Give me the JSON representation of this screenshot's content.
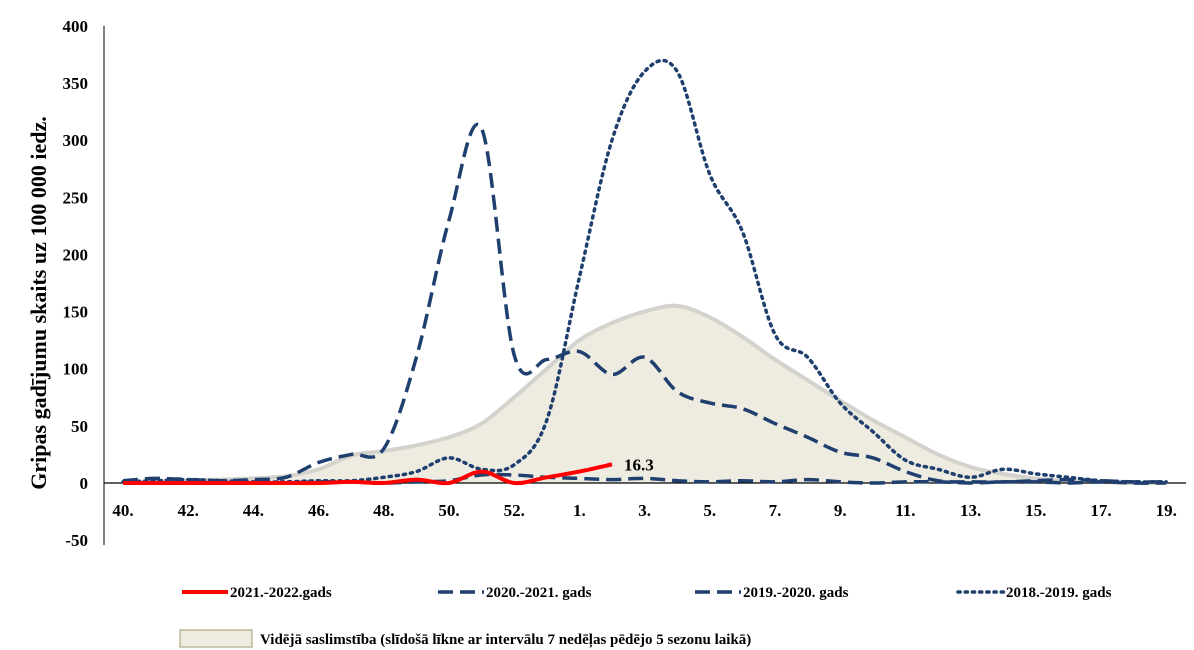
{
  "chart_data": {
    "type": "line",
    "ylabel": "Gripas gadījumu skaits uz 100 000 iedz.",
    "xlabel": "",
    "ylim": [
      -50,
      400
    ],
    "yticks": [
      400,
      350,
      300,
      250,
      200,
      150,
      100,
      50,
      0,
      -50
    ],
    "weeks": [
      40,
      41,
      42,
      43,
      44,
      45,
      46,
      47,
      48,
      49,
      50,
      51,
      52,
      1,
      2,
      3,
      4,
      5,
      6,
      7,
      8,
      9,
      10,
      11,
      12,
      13,
      14,
      15,
      16,
      17,
      18,
      19,
      20
    ],
    "xtick_labels": [
      "40.",
      "42.",
      "44.",
      "46.",
      "48.",
      "50.",
      "52.",
      "1.",
      "3.",
      "5.",
      "7.",
      "9.",
      "11.",
      "13.",
      "15.",
      "17.",
      "19."
    ],
    "xtick_positions": [
      0,
      2,
      4,
      6,
      8,
      10,
      12,
      14,
      16,
      18,
      20,
      22,
      24,
      26,
      28,
      30,
      32
    ],
    "area": {
      "name": "Vidējā saslimstība (slīdošā līkne ar intervālu 7 nedēļas pēdējo 5 sezonu laikā)",
      "values": [
        1,
        1,
        2,
        3,
        4,
        6,
        12,
        24,
        28,
        33,
        40,
        52,
        75,
        100,
        125,
        140,
        150,
        155,
        145,
        128,
        108,
        90,
        72,
        55,
        40,
        25,
        14,
        8,
        4,
        2,
        1,
        0,
        0
      ]
    },
    "series": [
      {
        "name": "2018.-2019. gads",
        "color": "#1f3f6e",
        "style": "dotted",
        "values": [
          1,
          2,
          3,
          2,
          1,
          1,
          2,
          2,
          5,
          10,
          22,
          12,
          16,
          55,
          180,
          300,
          360,
          360,
          270,
          220,
          130,
          110,
          70,
          45,
          20,
          12,
          5,
          12,
          8,
          5,
          2,
          1,
          1
        ]
      },
      {
        "name": "2019.-2020. gads",
        "color": "#1f3f6e",
        "style": "dashed",
        "values": [
          2,
          4,
          3,
          2,
          3,
          5,
          18,
          25,
          30,
          110,
          230,
          310,
          112,
          108,
          115,
          95,
          110,
          80,
          70,
          65,
          52,
          40,
          27,
          22,
          10,
          2,
          1,
          1,
          2,
          3,
          2,
          1,
          1
        ]
      },
      {
        "name": "2020.-2021. gads",
        "color": "#1f3f6e",
        "style": "dashed",
        "values": [
          0,
          0,
          1,
          0,
          0,
          0,
          1,
          1,
          0,
          1,
          2,
          7,
          7,
          5,
          4,
          3,
          4,
          2,
          1,
          2,
          1,
          3,
          1,
          0,
          1,
          1,
          0,
          1,
          1,
          0,
          1,
          0,
          0
        ]
      },
      {
        "name": "2021.-2022.gads",
        "color": "#ff0000",
        "style": "solid",
        "values": [
          0,
          0,
          0,
          0,
          0,
          0,
          0,
          1,
          0,
          3,
          0,
          10,
          0,
          5,
          10,
          16.3
        ]
      }
    ],
    "annotation": {
      "text": "16.3"
    },
    "legend_position": "bottom"
  }
}
